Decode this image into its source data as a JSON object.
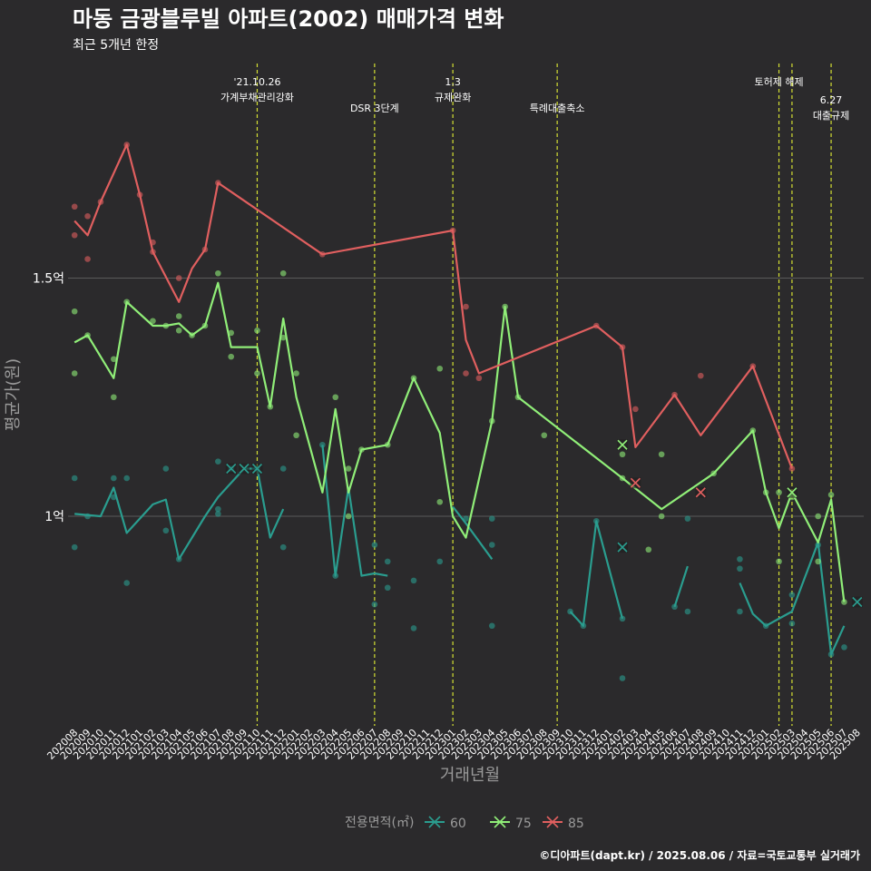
{
  "header": {
    "title": "마동 금광블루빌 아파트(2002) 매매가격 변화",
    "subtitle": "최근 5개년 한정"
  },
  "caption": "©디아파트(dapt.kr) / 2025.08.06 / 자료=국토교통부 실거래가",
  "colors": {
    "background": "#2b2a2c",
    "series_60": "#2a9d8f",
    "series_75": "#90ee78",
    "series_85": "#e05f5f",
    "event_line": "#d4e033",
    "gridline": "#5a5a5a"
  },
  "chart_data": {
    "type": "line",
    "xlabel": "거래년월",
    "ylabel": "평균가(원)",
    "ylim": [
      0.56,
      1.96
    ],
    "yticks": [
      {
        "value": 1.0,
        "label": "1억"
      },
      {
        "value": 1.5,
        "label": "1.5억"
      }
    ],
    "x": [
      "202008",
      "202009",
      "202010",
      "202011",
      "202012",
      "202101",
      "202102",
      "202103",
      "202104",
      "202105",
      "202106",
      "202107",
      "202108",
      "202109",
      "202110",
      "202111",
      "202112",
      "202201",
      "202202",
      "202203",
      "202204",
      "202205",
      "202206",
      "202207",
      "202208",
      "202209",
      "202210",
      "202211",
      "202212",
      "202301",
      "202302",
      "202303",
      "202304",
      "202305",
      "202306",
      "202307",
      "202308",
      "202309",
      "202310",
      "202311",
      "202312",
      "202401",
      "202402",
      "202403",
      "202404",
      "202405",
      "202406",
      "202407",
      "202408",
      "202409",
      "202410",
      "202411",
      "202412",
      "202501",
      "202502",
      "202503",
      "202504",
      "202505",
      "202506",
      "202507",
      "202508"
    ],
    "legend": {
      "title": "전용면적(㎡)",
      "position": "bottom",
      "entries": [
        "60",
        "75",
        "85"
      ]
    },
    "events": [
      {
        "x": "202110",
        "label": [
          "'21.10.26",
          "가계부채관리강화"
        ],
        "row": 1
      },
      {
        "x": "202207",
        "label": [
          "DSR 3단계"
        ],
        "row": 2
      },
      {
        "x": "202301",
        "label": [
          "1.3",
          "규제완화"
        ],
        "row": 1
      },
      {
        "x": "202309",
        "label": [
          "특례대출축소"
        ],
        "row": 2
      },
      {
        "x": "202502",
        "label": [
          "토허제 해제"
        ],
        "row": 1
      },
      {
        "x": "202503",
        "label": [],
        "row": 1
      },
      {
        "x": "202506",
        "label": [
          "6.27",
          "대출규제"
        ],
        "row": 3
      }
    ],
    "series": [
      {
        "name": "60",
        "line": [
          [
            0,
            1.005
          ],
          [
            2,
            1.0
          ],
          [
            3,
            1.06
          ],
          [
            4,
            0.965
          ],
          [
            6,
            1.025
          ],
          [
            7,
            1.035
          ],
          [
            8,
            0.91
          ],
          [
            10,
            1.0
          ],
          [
            11,
            1.04
          ],
          [
            13,
            1.1
          ],
          [
            14,
            1.1
          ],
          [
            15,
            0.955
          ],
          [
            16,
            1.015
          ],
          null,
          [
            19,
            1.15
          ],
          [
            20,
            0.875
          ],
          [
            21,
            1.06
          ],
          [
            22,
            0.875
          ],
          [
            23,
            0.88
          ],
          [
            24,
            0.875
          ],
          null,
          [
            29,
            1.02
          ],
          [
            30,
            0.985
          ],
          [
            32,
            0.91
          ],
          null,
          [
            38,
            0.8
          ],
          [
            39,
            0.77
          ],
          [
            40,
            0.99
          ],
          [
            42,
            0.785
          ],
          null,
          [
            46,
            0.81
          ],
          [
            47,
            0.895
          ],
          null,
          [
            51,
            0.86
          ],
          [
            52,
            0.795
          ],
          [
            53,
            0.77
          ],
          [
            54,
            0.785
          ],
          [
            55,
            0.8
          ],
          [
            57,
            0.945
          ],
          [
            58,
            0.71
          ],
          [
            59,
            0.77
          ]
        ],
        "points": [
          [
            0,
            1.08
          ],
          [
            0,
            0.935
          ],
          [
            1,
            1.0
          ],
          [
            3,
            1.08
          ],
          [
            3,
            1.04
          ],
          [
            4,
            1.08
          ],
          [
            4,
            0.86
          ],
          [
            7,
            0.97
          ],
          [
            7,
            1.1
          ],
          [
            8,
            0.91
          ],
          [
            11,
            1.005
          ],
          [
            11,
            1.015
          ],
          [
            11,
            1.115
          ],
          [
            12,
            1.1
          ],
          [
            14,
            1.1
          ],
          [
            16,
            1.1
          ],
          [
            16,
            0.935
          ],
          [
            19,
            1.15
          ],
          [
            20,
            0.875
          ],
          [
            23,
            0.94
          ],
          [
            23,
            0.815
          ],
          [
            24,
            0.905
          ],
          [
            24,
            0.85
          ],
          [
            26,
            0.865
          ],
          [
            26,
            0.765
          ],
          [
            28,
            0.905
          ],
          [
            30,
            0.995
          ],
          [
            32,
            0.94
          ],
          [
            32,
            0.77
          ],
          [
            32,
            0.995
          ],
          [
            38,
            0.8
          ],
          [
            39,
            0.77
          ],
          [
            40,
            0.99
          ],
          [
            42,
            0.66
          ],
          [
            42,
            0.785
          ],
          [
            46,
            0.81
          ],
          [
            47,
            0.8
          ],
          [
            47,
            0.995
          ],
          [
            51,
            0.91
          ],
          [
            51,
            0.89
          ],
          [
            51,
            0.8
          ],
          [
            53,
            0.77
          ],
          [
            55,
            0.775
          ],
          [
            55,
            0.835
          ],
          [
            57,
            0.94
          ],
          [
            58,
            0.71
          ],
          [
            59,
            0.725
          ]
        ],
        "crosses": [
          [
            12,
            1.1
          ],
          [
            13,
            1.1
          ],
          [
            14,
            1.1
          ],
          [
            42,
            0.935
          ],
          [
            60,
            0.82
          ]
        ]
      },
      {
        "name": "75",
        "line": [
          [
            0,
            1.365
          ],
          [
            1,
            1.38
          ],
          [
            3,
            1.29
          ],
          [
            4,
            1.45
          ],
          [
            6,
            1.4
          ],
          [
            7,
            1.4
          ],
          [
            8,
            1.405
          ],
          [
            9,
            1.38
          ],
          [
            10,
            1.4
          ],
          [
            11,
            1.49
          ],
          [
            12,
            1.355
          ],
          [
            14,
            1.355
          ],
          [
            15,
            1.23
          ],
          [
            16,
            1.415
          ],
          [
            17,
            1.25
          ],
          [
            19,
            1.05
          ],
          [
            20,
            1.225
          ],
          [
            21,
            1.05
          ],
          [
            22,
            1.14
          ],
          [
            24,
            1.15
          ],
          [
            26,
            1.29
          ],
          [
            28,
            1.175
          ],
          [
            29,
            1.0
          ],
          [
            30,
            0.955
          ],
          [
            32,
            1.2
          ],
          [
            33,
            1.44
          ],
          [
            34,
            1.25
          ],
          [
            42,
            1.08
          ],
          [
            45,
            1.015
          ],
          [
            49,
            1.09
          ],
          [
            52,
            1.18
          ],
          [
            53,
            1.05
          ],
          [
            54,
            0.975
          ],
          [
            55,
            1.05
          ],
          [
            57,
            0.945
          ],
          [
            58,
            1.035
          ],
          [
            59,
            0.82
          ]
        ],
        "points": [
          [
            0,
            1.43
          ],
          [
            0,
            1.3
          ],
          [
            1,
            1.38
          ],
          [
            3,
            1.33
          ],
          [
            3,
            1.25
          ],
          [
            4,
            1.45
          ],
          [
            6,
            1.41
          ],
          [
            7,
            1.4
          ],
          [
            8,
            1.39
          ],
          [
            8,
            1.42
          ],
          [
            9,
            1.38
          ],
          [
            10,
            1.4
          ],
          [
            11,
            1.51
          ],
          [
            12,
            1.385
          ],
          [
            12,
            1.335
          ],
          [
            14,
            1.39
          ],
          [
            14,
            1.3
          ],
          [
            15,
            1.23
          ],
          [
            16,
            1.51
          ],
          [
            16,
            1.375
          ],
          [
            17,
            1.3
          ],
          [
            17,
            1.17
          ],
          [
            20,
            1.25
          ],
          [
            21,
            1.1
          ],
          [
            21,
            1.0
          ],
          [
            22,
            1.14
          ],
          [
            24,
            1.15
          ],
          [
            26,
            1.29
          ],
          [
            28,
            1.31
          ],
          [
            28,
            1.03
          ],
          [
            32,
            1.2
          ],
          [
            33,
            1.44
          ],
          [
            34,
            1.25
          ],
          [
            36,
            1.17
          ],
          [
            42,
            1.08
          ],
          [
            42,
            1.13
          ],
          [
            44,
            0.93
          ],
          [
            45,
            1.13
          ],
          [
            45,
            1.0
          ],
          [
            49,
            1.09
          ],
          [
            52,
            1.18
          ],
          [
            53,
            1.05
          ],
          [
            54,
            0.905
          ],
          [
            54,
            1.05
          ],
          [
            55,
            1.04
          ],
          [
            57,
            0.905
          ],
          [
            57,
            1.0
          ],
          [
            58,
            1.045
          ],
          [
            59,
            0.82
          ]
        ],
        "crosses": [
          [
            42,
            1.15
          ],
          [
            55,
            1.05
          ]
        ]
      },
      {
        "name": "85",
        "line": [
          [
            0,
            1.62
          ],
          [
            1,
            1.59
          ],
          [
            2,
            1.66
          ],
          [
            4,
            1.78
          ],
          [
            5,
            1.675
          ],
          [
            6,
            1.555
          ],
          [
            8,
            1.45
          ],
          [
            9,
            1.52
          ],
          [
            10,
            1.56
          ],
          [
            11,
            1.7
          ],
          [
            19,
            1.55
          ],
          [
            29,
            1.6
          ],
          [
            30,
            1.37
          ],
          [
            31,
            1.3
          ],
          [
            40,
            1.4
          ],
          [
            42,
            1.355
          ],
          [
            43,
            1.145
          ],
          [
            46,
            1.255
          ],
          [
            48,
            1.17
          ],
          [
            52,
            1.315
          ],
          [
            55,
            1.1
          ]
        ],
        "points": [
          [
            0,
            1.65
          ],
          [
            0,
            1.59
          ],
          [
            1,
            1.63
          ],
          [
            1,
            1.54
          ],
          [
            2,
            1.66
          ],
          [
            4,
            1.78
          ],
          [
            5,
            1.675
          ],
          [
            6,
            1.575
          ],
          [
            6,
            1.555
          ],
          [
            8,
            1.5
          ],
          [
            10,
            1.56
          ],
          [
            11,
            1.7
          ],
          [
            19,
            1.55
          ],
          [
            29,
            1.6
          ],
          [
            30,
            1.44
          ],
          [
            30,
            1.3
          ],
          [
            31,
            1.29
          ],
          [
            40,
            1.4
          ],
          [
            42,
            1.355
          ],
          [
            43,
            1.225
          ],
          [
            46,
            1.255
          ],
          [
            48,
            1.295
          ],
          [
            52,
            1.315
          ],
          [
            55,
            1.1
          ]
        ],
        "crosses": [
          [
            43,
            1.07
          ],
          [
            48,
            1.05
          ]
        ]
      }
    ]
  }
}
